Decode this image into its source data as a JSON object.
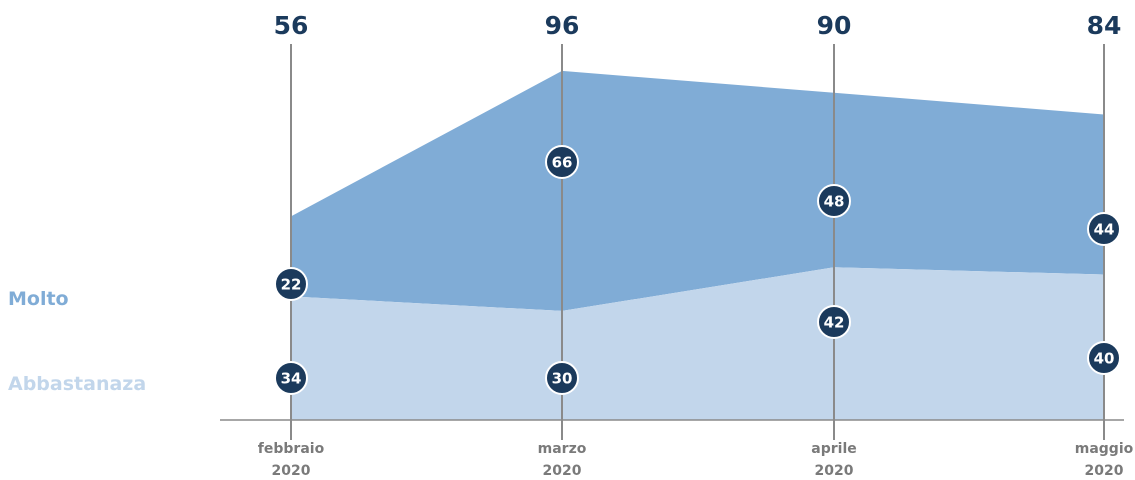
{
  "chart_data": {
    "type": "area",
    "stacked": true,
    "categories": [
      [
        "febbraio",
        "2020"
      ],
      [
        "marzo",
        "2020"
      ],
      [
        "aprile",
        "2020"
      ],
      [
        "maggio",
        "2020"
      ]
    ],
    "totals": [
      56,
      96,
      90,
      84
    ],
    "series": [
      {
        "name": "Abbastanaza",
        "values": [
          34,
          30,
          42,
          40
        ],
        "color": "#c2d6eb"
      },
      {
        "name": "Molto",
        "values": [
          22,
          66,
          48,
          44
        ],
        "color": "#80acd6"
      }
    ],
    "ylim": [
      0,
      110
    ],
    "grid": false,
    "legend_position": "left",
    "colors": {
      "total_text": "#1b3a5c",
      "badge_fill": "#1b3a5c",
      "badge_text": "#ffffff",
      "axis_line": "#8a8a8a",
      "category_text": "#7a7a7a",
      "legend_molto": "#80acd6",
      "legend_abbastanaza": "#c2d6eb"
    }
  }
}
